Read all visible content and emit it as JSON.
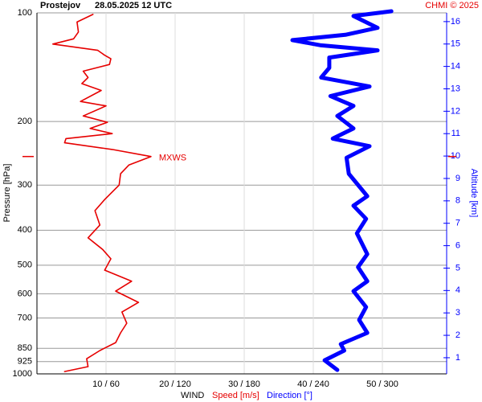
{
  "chart_data": {
    "type": "line",
    "title": "Prostejov",
    "subtitle": "28.05.2025 12 UTC",
    "credit": "CHMI © 2025",
    "ylabel": "Pressure [hPa]",
    "y2label": "Altitude [km]",
    "xlabel": "WIND",
    "log_y": true,
    "ylim": [
      100,
      1000
    ],
    "yticks": [
      100,
      200,
      300,
      400,
      500,
      600,
      700,
      850,
      925,
      1000
    ],
    "y2lim": [
      0.28,
      16.39
    ],
    "y2ticks": [
      1,
      2,
      3,
      4,
      5,
      6,
      7,
      8,
      9,
      10,
      11,
      12,
      13,
      14,
      15,
      16
    ],
    "xlim": [
      0,
      59.3
    ],
    "x2lim": [
      0,
      356
    ],
    "xticks": [
      {
        "value": 10,
        "label": "10 / 60"
      },
      {
        "value": 20,
        "label": "20 / 120"
      },
      {
        "value": 30,
        "label": "30 / 180"
      },
      {
        "value": 40,
        "label": "40 / 240"
      },
      {
        "value": 50,
        "label": "50 / 300"
      }
    ],
    "grid": true,
    "series": [
      {
        "name": "Speed [m/s]",
        "color": "#e60000",
        "axis": "x",
        "pressure": [
          101,
          106,
          113,
          118,
          122,
          127,
          131,
          134,
          139,
          145,
          151,
          157,
          164,
          176,
          181,
          193,
          201,
          209,
          216,
          223,
          229,
          239,
          250,
          264,
          279,
          300,
          329,
          353,
          387,
          420,
          452,
          480,
          516,
          554,
          590,
          634,
          674,
          724,
          770,
          819,
          862,
          908,
          955,
          985
        ],
        "values": [
          8.1,
          5.8,
          6.0,
          5.3,
          2.3,
          8.8,
          9.8,
          10.7,
          10.5,
          6.7,
          7.4,
          6.5,
          9.3,
          6.3,
          10.0,
          6.7,
          10.2,
          7.7,
          10.9,
          4.2,
          4.0,
          10.9,
          16.5,
          13.3,
          12.1,
          11.9,
          9.8,
          8.4,
          9.1,
          7.4,
          9.5,
          10.7,
          9.8,
          13.7,
          11.4,
          14.7,
          12.3,
          13.0,
          12.1,
          11.4,
          9.1,
          7.2,
          7.4,
          4.0
        ]
      },
      {
        "name": "Direction [°]",
        "color": "#0000ff",
        "axis": "x2",
        "pressure": [
          99,
          102,
          110,
          115,
          119,
          123,
          127,
          133,
          142,
          151,
          160,
          170,
          181,
          193,
          209,
          223,
          234,
          252,
          279,
          322,
          342,
          372,
          408,
          466,
          506,
          554,
          590,
          653,
          709,
          770,
          827,
          862,
          917,
          975
        ],
        "values": [
          308,
          275,
          296,
          268,
          222,
          247,
          296,
          254,
          254,
          247,
          289,
          255,
          275,
          261,
          275,
          257,
          289,
          269,
          271,
          287,
          275,
          286,
          278,
          287,
          279,
          287,
          275,
          286,
          280,
          287,
          264,
          267,
          250,
          261
        ]
      }
    ],
    "annotation": {
      "text": "MXWS",
      "pressure": 250
    }
  }
}
